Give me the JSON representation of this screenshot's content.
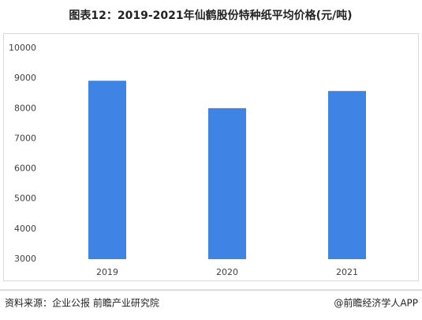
{
  "chart_data": {
    "type": "bar",
    "title": "图表12：2019-2021年仙鹤股份特种纸平均价格(元/吨)",
    "categories": [
      "2019",
      "2020",
      "2021"
    ],
    "values": [
      8920,
      8010,
      8580
    ],
    "color": "#3f84e5",
    "ylim": [
      3000,
      10000
    ],
    "yticks": [
      3000,
      4000,
      5000,
      6000,
      7000,
      8000,
      9000,
      10000
    ],
    "grid": false,
    "source": "资料来源：企业公报 前瞻产业研究院",
    "credit": "@前瞻经济学人APP"
  }
}
